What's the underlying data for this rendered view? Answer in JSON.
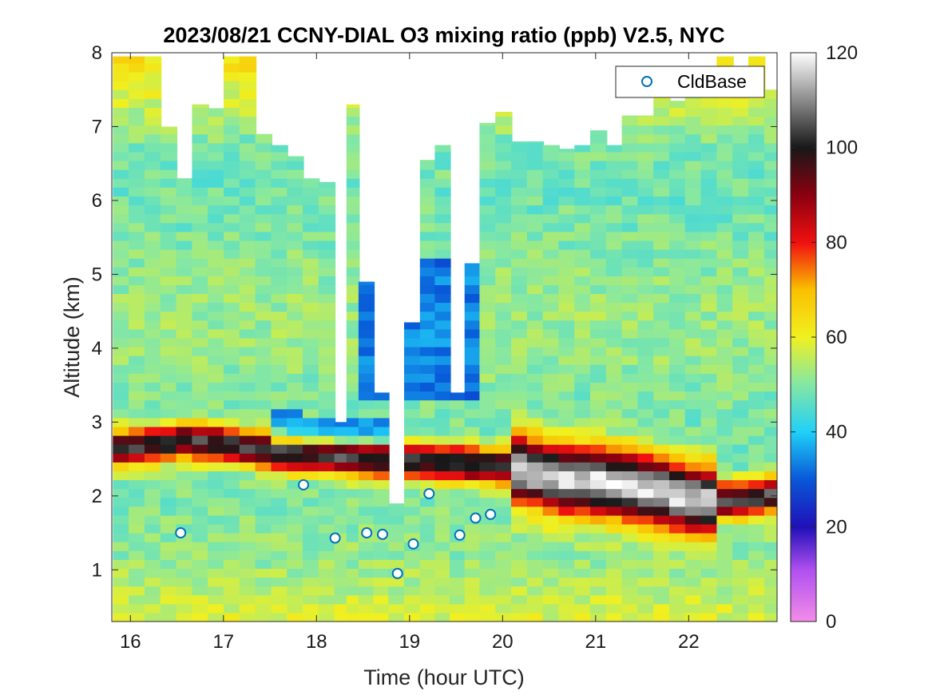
{
  "chart_data": {
    "type": "heatmap",
    "title": "2023/08/21 CCNY-DIAL O3 mixing ratio (ppb) V2.5, NYC",
    "xlabel": "Time (hour UTC)",
    "ylabel": "Altitude (km)",
    "xlim": [
      15.8,
      22.95
    ],
    "ylim": [
      0.3,
      8.0
    ],
    "xticks": [
      16,
      17,
      18,
      19,
      20,
      21,
      22
    ],
    "yticks": [
      1,
      2,
      3,
      4,
      5,
      6,
      7,
      8
    ],
    "colorbar": {
      "range": [
        0,
        120
      ],
      "ticks": [
        0,
        20,
        40,
        60,
        80,
        100,
        120
      ],
      "colormap": "white-gray-black-red-orange-yellow-cyan-blue-purple-pink"
    },
    "grid": false,
    "legend": {
      "position": "top-right",
      "entries": [
        "CldBase"
      ]
    },
    "marker_color": "#0072BD",
    "columns": [
      {
        "t": 15.82,
        "top": 7.95
      },
      {
        "t": 15.99,
        "top": 7.95
      },
      {
        "t": 16.16,
        "top": 7.95
      },
      {
        "t": 16.33,
        "top": 7.0
      },
      {
        "t": 16.5,
        "top": 6.3
      },
      {
        "t": 16.67,
        "top": 7.3
      },
      {
        "t": 16.84,
        "top": 7.25
      },
      {
        "t": 17.01,
        "top": 7.95
      },
      {
        "t": 17.18,
        "top": 7.95
      },
      {
        "t": 17.35,
        "top": 6.9
      },
      {
        "t": 17.52,
        "top": 6.75
      },
      {
        "t": 17.69,
        "top": 6.6
      },
      {
        "t": 17.86,
        "top": 6.3
      },
      {
        "t": 18.03,
        "top": 6.25
      },
      {
        "t": 18.2,
        "top": 3.0
      },
      {
        "t": 18.33,
        "top": 7.3
      },
      {
        "t": 18.46,
        "top": 4.9
      },
      {
        "t": 18.62,
        "top": 3.4
      },
      {
        "t": 18.78,
        "top": 1.9
      },
      {
        "t": 18.95,
        "top": 4.35
      },
      {
        "t": 19.12,
        "top": 6.55
      },
      {
        "t": 19.28,
        "top": 6.75
      },
      {
        "t": 19.44,
        "top": 3.4
      },
      {
        "t": 19.6,
        "top": 5.15
      },
      {
        "t": 19.76,
        "top": 7.05
      },
      {
        "t": 19.93,
        "top": 7.2
      },
      {
        "t": 20.1,
        "top": 6.8
      },
      {
        "t": 20.27,
        "top": 6.8
      },
      {
        "t": 20.44,
        "top": 6.75
      },
      {
        "t": 20.61,
        "top": 6.7
      },
      {
        "t": 20.78,
        "top": 6.75
      },
      {
        "t": 20.95,
        "top": 6.95
      },
      {
        "t": 21.12,
        "top": 6.75
      },
      {
        "t": 21.29,
        "top": 7.15
      },
      {
        "t": 21.46,
        "top": 7.15
      },
      {
        "t": 21.63,
        "top": 7.6
      },
      {
        "t": 21.8,
        "top": 7.35
      },
      {
        "t": 21.97,
        "top": 7.5
      },
      {
        "t": 22.14,
        "top": 7.45
      },
      {
        "t": 22.31,
        "top": 7.95
      },
      {
        "t": 22.48,
        "top": 7.4
      },
      {
        "t": 22.65,
        "top": 7.95
      },
      {
        "t": 22.82,
        "top": 7.5
      }
    ],
    "peak_layer": [
      {
        "t": 15.9,
        "alt": 2.65
      },
      {
        "t": 16.5,
        "alt": 2.75
      },
      {
        "t": 17.0,
        "alt": 2.7
      },
      {
        "t": 17.5,
        "alt": 2.6
      },
      {
        "t": 18.0,
        "alt": 2.55
      },
      {
        "t": 18.5,
        "alt": 2.5
      },
      {
        "t": 19.4,
        "alt": 2.45
      },
      {
        "t": 20.0,
        "alt": 2.4
      },
      {
        "t": 20.5,
        "alt": 2.25
      },
      {
        "t": 21.0,
        "alt": 2.2
      },
      {
        "t": 21.5,
        "alt": 2.1
      },
      {
        "t": 22.0,
        "alt": 1.95
      },
      {
        "t": 22.5,
        "alt": 1.95
      },
      {
        "t": 22.95,
        "alt": 2.05
      }
    ],
    "cloud_base": [
      {
        "t": 16.54,
        "alt": 1.5
      },
      {
        "t": 17.86,
        "alt": 2.15
      },
      {
        "t": 18.2,
        "alt": 1.43
      },
      {
        "t": 18.54,
        "alt": 1.5
      },
      {
        "t": 18.71,
        "alt": 1.48
      },
      {
        "t": 18.87,
        "alt": 0.95
      },
      {
        "t": 19.04,
        "alt": 1.35
      },
      {
        "t": 19.21,
        "alt": 2.03
      },
      {
        "t": 19.54,
        "alt": 1.47
      },
      {
        "t": 19.71,
        "alt": 1.7
      },
      {
        "t": 19.87,
        "alt": 1.75
      }
    ]
  }
}
